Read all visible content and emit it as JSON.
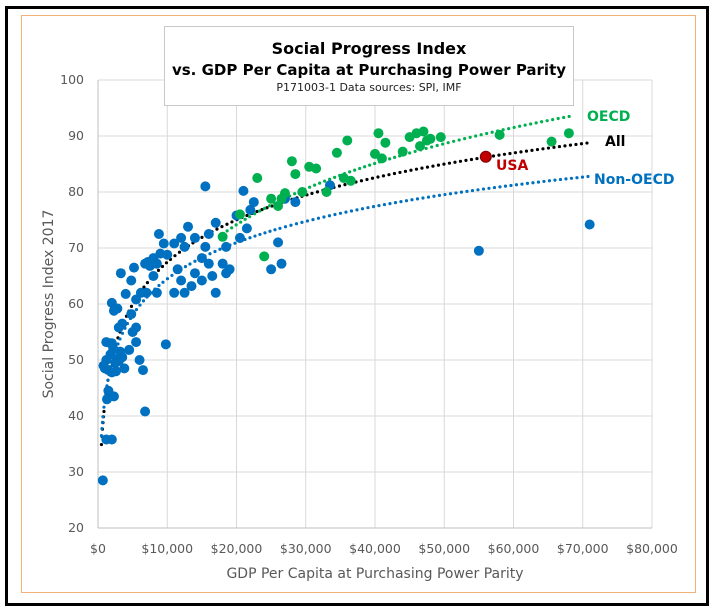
{
  "chart_data": {
    "type": "scatter",
    "title": "Social Progress Index",
    "subtitle": "vs. GDP Per Capita at Purchasing Power Parity",
    "source_note": "P171003-1 Data sources: SPI, IMF",
    "xlabel": "GDP Per Capita at Purchasing Power Parity",
    "ylabel": "Social Progress Index 2017",
    "xlim": [
      0,
      80000
    ],
    "ylim": [
      20,
      100
    ],
    "grid": true,
    "x_ticks": [
      "$0",
      "$10,000",
      "$20,000",
      "$30,000",
      "$40,000",
      "$50,000",
      "$60,000",
      "$70,000",
      "$80,000"
    ],
    "y_ticks": [
      "20",
      "30",
      "40",
      "50",
      "60",
      "70",
      "80",
      "90",
      "100"
    ],
    "colors": {
      "oecd": "#00b050",
      "non_oecd": "#0070c0",
      "all": "#000000",
      "usa": "#c00000",
      "grid": "#d9d9d9"
    },
    "series": [
      {
        "name": "Non-OECD",
        "color": "#0070c0",
        "points": [
          [
            700,
            28.5
          ],
          [
            1200,
            35.8
          ],
          [
            2000,
            35.8
          ],
          [
            2300,
            43.5
          ],
          [
            1300,
            43.0
          ],
          [
            1500,
            44.5
          ],
          [
            6800,
            40.8
          ],
          [
            9800,
            52.8
          ],
          [
            1000,
            48.5
          ],
          [
            1500,
            48.2
          ],
          [
            2000,
            47.8
          ],
          [
            2500,
            49.5
          ],
          [
            1800,
            51.0
          ],
          [
            2200,
            52.0
          ],
          [
            3000,
            49.8
          ],
          [
            3200,
            51.5
          ],
          [
            3800,
            48.5
          ],
          [
            4500,
            51.8
          ],
          [
            6500,
            48.2
          ],
          [
            2600,
            48.0
          ],
          [
            800,
            49.0
          ],
          [
            1200,
            50.0
          ],
          [
            1800,
            53.0
          ],
          [
            2800,
            50.2
          ],
          [
            3500,
            50.5
          ],
          [
            5500,
            53.2
          ],
          [
            6000,
            50.0
          ],
          [
            1200,
            53.2
          ],
          [
            2000,
            53.0
          ],
          [
            3000,
            55.8
          ],
          [
            3500,
            56.5
          ],
          [
            5000,
            55.0
          ],
          [
            5500,
            55.8
          ],
          [
            2300,
            58.8
          ],
          [
            2800,
            59.2
          ],
          [
            2000,
            60.2
          ],
          [
            4000,
            61.8
          ],
          [
            5500,
            60.8
          ],
          [
            4800,
            58.2
          ],
          [
            7000,
            62.0
          ],
          [
            8500,
            62.0
          ],
          [
            3300,
            65.5
          ],
          [
            4800,
            64.2
          ],
          [
            5200,
            66.5
          ],
          [
            6200,
            62.0
          ],
          [
            7500,
            66.8
          ],
          [
            8000,
            65.0
          ],
          [
            8500,
            67.2
          ],
          [
            9000,
            69.0
          ],
          [
            9500,
            70.8
          ],
          [
            10000,
            68.8
          ],
          [
            6800,
            67.2
          ],
          [
            7200,
            67.5
          ],
          [
            8000,
            68.2
          ],
          [
            8800,
            72.5
          ],
          [
            11000,
            70.8
          ],
          [
            12000,
            71.8
          ],
          [
            11500,
            66.2
          ],
          [
            11000,
            62.0
          ],
          [
            12500,
            62.0
          ],
          [
            12000,
            64.2
          ],
          [
            13500,
            63.2
          ],
          [
            14000,
            65.5
          ],
          [
            12500,
            70.2
          ],
          [
            13000,
            73.8
          ],
          [
            14000,
            71.8
          ],
          [
            15000,
            68.2
          ],
          [
            15500,
            70.2
          ],
          [
            16000,
            72.5
          ],
          [
            17000,
            74.5
          ],
          [
            16500,
            65.0
          ],
          [
            17000,
            62.0
          ],
          [
            16000,
            67.2
          ],
          [
            18500,
            65.5
          ],
          [
            19000,
            66.2
          ],
          [
            15000,
            64.2
          ],
          [
            18000,
            67.2
          ],
          [
            18500,
            70.2
          ],
          [
            15500,
            81.0
          ],
          [
            20500,
            71.8
          ],
          [
            21500,
            73.5
          ],
          [
            22000,
            76.8
          ],
          [
            22500,
            78.2
          ],
          [
            20000,
            75.8
          ],
          [
            21000,
            80.2
          ],
          [
            25000,
            66.2
          ],
          [
            26500,
            67.2
          ],
          [
            26000,
            71.0
          ],
          [
            27000,
            78.8
          ],
          [
            28500,
            78.2
          ],
          [
            33500,
            81.2
          ],
          [
            55000,
            69.5
          ],
          [
            71000,
            74.2
          ]
        ]
      },
      {
        "name": "OECD",
        "color": "#00b050",
        "points": [
          [
            18000,
            72.0
          ],
          [
            20500,
            76.0
          ],
          [
            23000,
            82.5
          ],
          [
            24000,
            68.5
          ],
          [
            25000,
            78.8
          ],
          [
            26500,
            78.8
          ],
          [
            27000,
            79.8
          ],
          [
            26000,
            77.5
          ],
          [
            28000,
            85.5
          ],
          [
            28500,
            83.2
          ],
          [
            29500,
            80.0
          ],
          [
            30500,
            84.5
          ],
          [
            31500,
            84.2
          ],
          [
            33000,
            80.0
          ],
          [
            34500,
            87.0
          ],
          [
            35500,
            82.5
          ],
          [
            36000,
            89.2
          ],
          [
            36500,
            82.0
          ],
          [
            40000,
            86.8
          ],
          [
            40500,
            90.5
          ],
          [
            41000,
            86.0
          ],
          [
            41500,
            88.8
          ],
          [
            44000,
            87.2
          ],
          [
            45000,
            89.8
          ],
          [
            46000,
            90.5
          ],
          [
            46500,
            88.2
          ],
          [
            47000,
            90.8
          ],
          [
            47500,
            89.2
          ],
          [
            48000,
            89.5
          ],
          [
            49500,
            89.8
          ],
          [
            58000,
            90.2
          ],
          [
            65500,
            89.0
          ],
          [
            68000,
            90.5
          ]
        ]
      },
      {
        "name": "USA",
        "color": "#c00000",
        "points": [
          [
            56000,
            86.3
          ]
        ]
      }
    ],
    "trendlines": [
      {
        "name": "All",
        "type": "log",
        "color": "#000000",
        "x_range": [
          500,
          71000
        ],
        "a": 10.1,
        "b": 0.0,
        "y_at_min": 34.9,
        "y_at_max": 88.8
      },
      {
        "name": "OECD",
        "type": "log",
        "color": "#00b050",
        "x_range": [
          18000,
          68500
        ],
        "y_at_min": 72.5,
        "y_at_max": 93.6
      },
      {
        "name": "Non-OECD",
        "type": "log",
        "color": "#0070c0",
        "x_range": [
          500,
          71000
        ],
        "y_at_min": 36.5,
        "y_at_max": 82.8
      }
    ],
    "annotations": [
      {
        "text": "OECD",
        "color": "#00b050"
      },
      {
        "text": "All",
        "color": "#000000"
      },
      {
        "text": "Non-OECD",
        "color": "#0070c0"
      },
      {
        "text": "USA",
        "color": "#c00000"
      }
    ]
  }
}
